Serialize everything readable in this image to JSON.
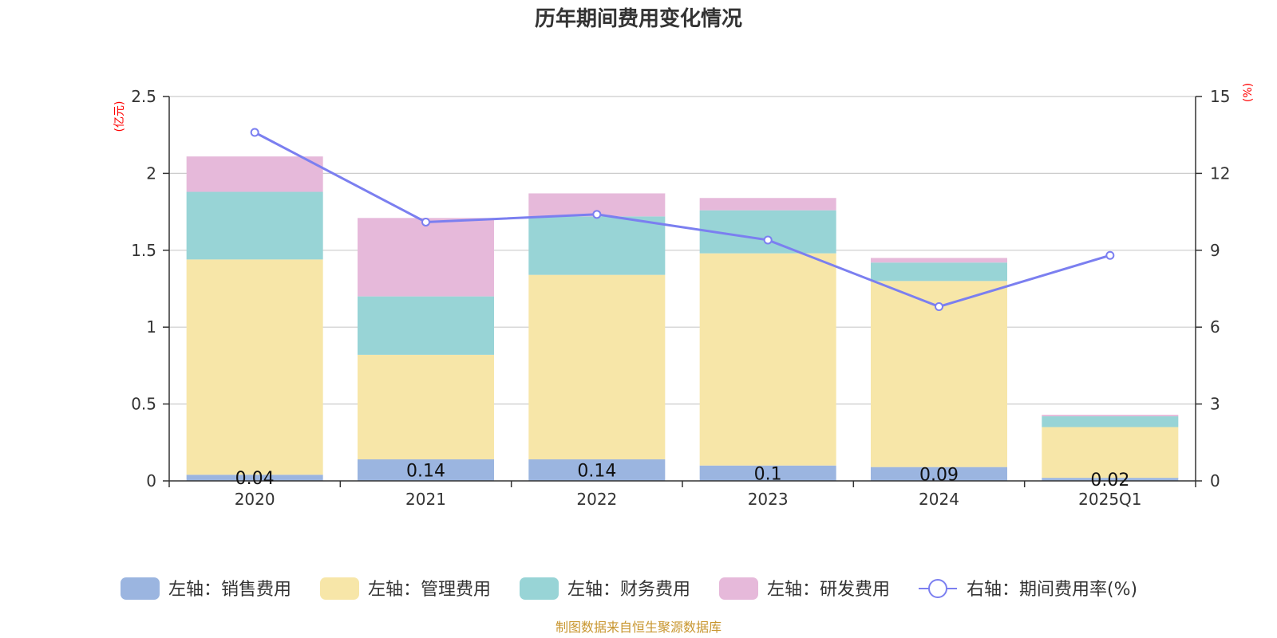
{
  "title": "历年期间费用变化情况",
  "source": "制图数据来自恒生聚源数据库",
  "chart_data": {
    "type": "bar",
    "stacked": true,
    "categories": [
      "2020",
      "2021",
      "2022",
      "2023",
      "2024",
      "2025Q1"
    ],
    "left_axis": {
      "unit": "(亿元)",
      "min": 0,
      "max": 2.5,
      "ticks": [
        "0",
        "0.5",
        "1",
        "1.5",
        "2",
        "2.5"
      ]
    },
    "right_axis": {
      "unit": "(%)",
      "min": 0,
      "max": 15,
      "ticks": [
        "0",
        "3",
        "6",
        "9",
        "12",
        "15"
      ]
    },
    "series": [
      {
        "name": "左轴：销售费用",
        "axis": "left",
        "color": "#9bb5e0",
        "values": [
          0.04,
          0.14,
          0.14,
          0.1,
          0.09,
          0.02
        ],
        "labels": [
          "0.04",
          "0.14",
          "0.14",
          "0.1",
          "0.09",
          "0.02"
        ]
      },
      {
        "name": "左轴：管理费用",
        "axis": "left",
        "color": "#f7e6a8",
        "values": [
          1.4,
          0.68,
          1.2,
          1.38,
          1.21,
          0.33
        ]
      },
      {
        "name": "左轴：财务费用",
        "axis": "left",
        "color": "#98d4d6",
        "values": [
          0.44,
          0.38,
          0.38,
          0.28,
          0.12,
          0.07
        ]
      },
      {
        "name": "左轴：研发费用",
        "axis": "left",
        "color": "#e6b9da",
        "values": [
          0.23,
          0.51,
          0.15,
          0.08,
          0.03,
          0.01
        ]
      },
      {
        "name": "右轴：期间费用率(%)",
        "axis": "right",
        "type": "line",
        "color": "#7b7ff0",
        "values": [
          13.6,
          10.1,
          10.4,
          9.4,
          6.8,
          8.8
        ]
      }
    ],
    "legend_position": "bottom"
  }
}
